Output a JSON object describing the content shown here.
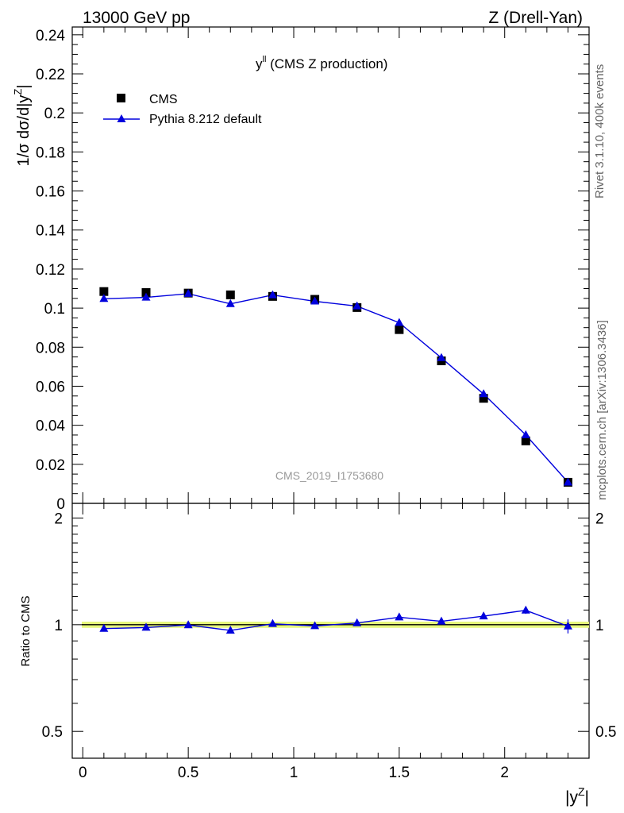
{
  "header": {
    "left": "13000 GeV pp",
    "right": "Z (Drell-Yan)"
  },
  "side_labels": {
    "rivet": "Rivet 3.1.10,  400k events",
    "mcplots": "mcplots.cern.ch [arXiv:1306.3436]"
  },
  "chart_data": [
    {
      "type": "scatter",
      "panel": "main",
      "title_main": "y",
      "title_sup": "ll",
      "title_rest": " (CMS Z production)",
      "ylabel": "1/σ dσ/d|y",
      "ylabel_sup": "Z",
      "ylabel_end": "|",
      "watermark": "CMS_2019_I1753680",
      "xlim": [
        -0.05,
        2.4
      ],
      "ylim": [
        0,
        0.244
      ],
      "grid": false,
      "legend_position": "top-left",
      "x_ticks": [
        0,
        0.5,
        1,
        1.5,
        2
      ],
      "y_ticks": [
        {
          "v": 0,
          "label": "0"
        },
        {
          "v": 0.02,
          "label": "0.02"
        },
        {
          "v": 0.04,
          "label": "0.04"
        },
        {
          "v": 0.06,
          "label": "0.06"
        },
        {
          "v": 0.08,
          "label": "0.08"
        },
        {
          "v": 0.1,
          "label": "0.1"
        },
        {
          "v": 0.12,
          "label": "0.12"
        },
        {
          "v": 0.14,
          "label": "0.14"
        },
        {
          "v": 0.16,
          "label": "0.16"
        },
        {
          "v": 0.18,
          "label": "0.18"
        },
        {
          "v": 0.2,
          "label": "0.2"
        },
        {
          "v": 0.22,
          "label": "0.22"
        },
        {
          "v": 0.24,
          "label": "0.24"
        }
      ],
      "x": [
        0.1,
        0.3,
        0.5,
        0.7,
        0.9,
        1.1,
        1.3,
        1.5,
        1.7,
        1.9,
        2.1,
        2.3
      ],
      "series": [
        {
          "name": "CMS",
          "marker": "square",
          "color": "#000000",
          "values": [
            0.1085,
            0.108,
            0.1077,
            0.1068,
            0.106,
            0.1045,
            0.1003,
            0.089,
            0.073,
            0.0538,
            0.032,
            0.0108
          ]
        },
        {
          "name": "Pythia 8.212 default",
          "marker": "triangle",
          "color": "#0000dd",
          "values": [
            0.1048,
            0.1055,
            0.1074,
            0.1022,
            0.1067,
            0.1035,
            0.101,
            0.0925,
            0.0745,
            0.056,
            0.035,
            0.0108
          ],
          "errors": [
            0.0008,
            0.0008,
            0.0008,
            0.0008,
            0.0008,
            0.0008,
            0.0012,
            0.0015,
            0.0012,
            0.0012,
            0.001,
            0.0008
          ]
        }
      ]
    },
    {
      "type": "scatter",
      "panel": "ratio",
      "ylabel": "Ratio to CMS",
      "xlabel": "|y",
      "xlabel_sup": "Z",
      "xlabel_end": "|",
      "xlim": [
        -0.05,
        2.4
      ],
      "ylim": [
        0.42,
        2.2
      ],
      "log_y": true,
      "reference_line": 1,
      "band_color": "#e6f77c",
      "band_half_width": 0.02,
      "x_ticks": [
        {
          "v": 0,
          "label": "0"
        },
        {
          "v": 0.5,
          "label": "0.5"
        },
        {
          "v": 1,
          "label": "1"
        },
        {
          "v": 1.5,
          "label": "1.5"
        },
        {
          "v": 2,
          "label": "2"
        }
      ],
      "y_ticks": [
        {
          "v": 0.5,
          "label": "0.5"
        },
        {
          "v": 1,
          "label": "1"
        },
        {
          "v": 2,
          "label": "2"
        }
      ],
      "x": [
        0.1,
        0.3,
        0.5,
        0.7,
        0.9,
        1.1,
        1.3,
        1.5,
        1.7,
        1.9,
        2.1,
        2.3
      ],
      "series": [
        {
          "name": "Pythia 8.212 default",
          "color": "#0000dd",
          "values": [
            0.975,
            0.982,
            0.998,
            0.963,
            1.006,
            0.992,
            1.011,
            1.05,
            1.022,
            1.057,
            1.098,
            0.99
          ],
          "errors": [
            0.008,
            0.008,
            0.008,
            0.008,
            0.008,
            0.008,
            0.01,
            0.012,
            0.01,
            0.014,
            0.025,
            0.045
          ]
        }
      ]
    }
  ]
}
